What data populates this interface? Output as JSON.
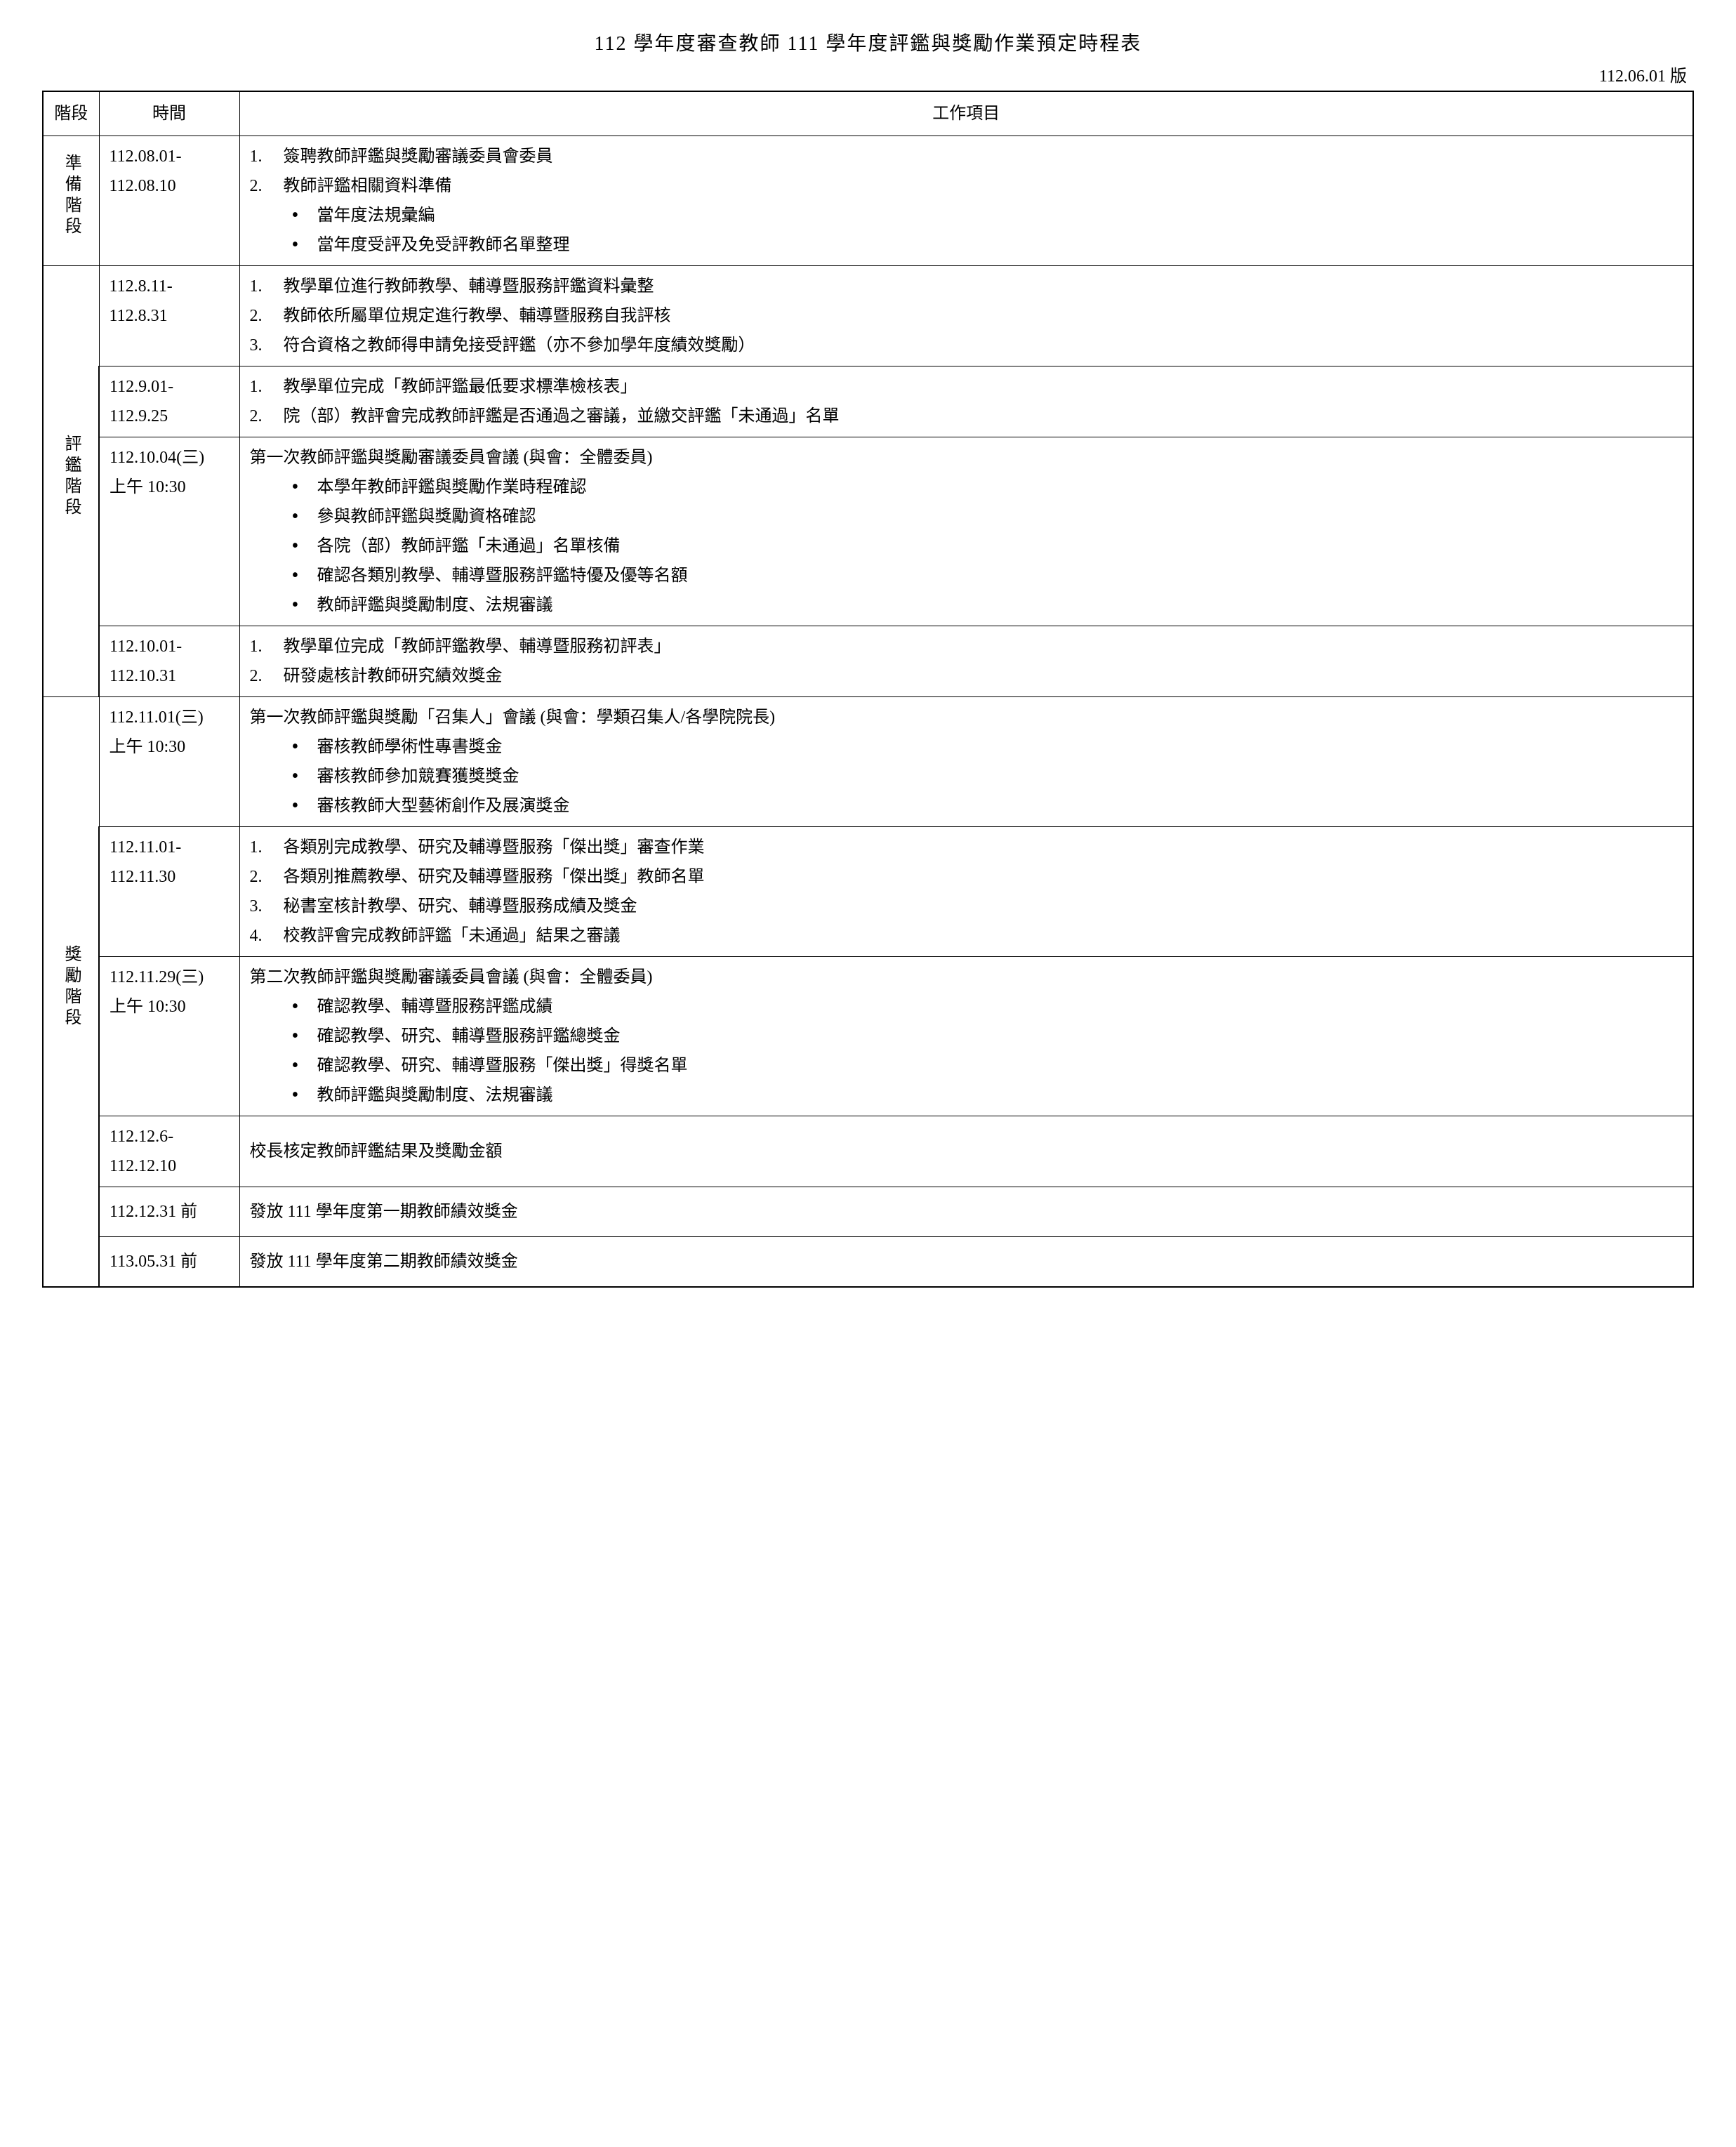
{
  "title": "112 學年度審查教師 111 學年度評鑑與獎勵作業預定時程表",
  "version": "112.06.01 版",
  "headers": {
    "stage": "階段",
    "time": "時間",
    "tasks": "工作項目"
  },
  "stages": {
    "prep": "準備階段",
    "eval": "評鑑階段",
    "reward": "獎勵階段"
  },
  "rows": {
    "r1": {
      "time1": "112.08.01-",
      "time2": "112.08.10",
      "li1": "簽聘教師評鑑與獎勵審議委員會委員",
      "li2": "教師評鑑相關資料準備",
      "sub1": "當年度法規彙編",
      "sub2": "當年度受評及免受評教師名單整理"
    },
    "r2": {
      "time1": "112.8.11-",
      "time2": "112.8.31",
      "li1": "教學單位進行教師教學、輔導暨服務評鑑資料彙整",
      "li2": "教師依所屬單位規定進行教學、輔導暨服務自我評核",
      "li3": "符合資格之教師得申請免接受評鑑（亦不參加學年度績效獎勵）"
    },
    "r3": {
      "time1": "112.9.01-",
      "time2": "112.9.25",
      "li1": "教學單位完成「教師評鑑最低要求標準檢核表」",
      "li2": "院（部）教評會完成教師評鑑是否通過之審議，並繳交評鑑「未通過」名單"
    },
    "r4": {
      "time1": "112.10.04(三)",
      "time2": "上午 10:30",
      "intro": "第一次教師評鑑與獎勵審議委員會議 (與會：全體委員)",
      "sub1": "本學年教師評鑑與獎勵作業時程確認",
      "sub2": "參與教師評鑑與獎勵資格確認",
      "sub3": "各院（部）教師評鑑「未通過」名單核備",
      "sub4": "確認各類別教學、輔導暨服務評鑑特優及優等名額",
      "sub5": "教師評鑑與獎勵制度、法規審議"
    },
    "r5": {
      "time1": "112.10.01-",
      "time2": "112.10.31",
      "li1": "教學單位完成「教師評鑑教學、輔導暨服務初評表」",
      "li2": "研發處核計教師研究績效獎金"
    },
    "r6": {
      "time1": "112.11.01(三)",
      "time2": "上午 10:30",
      "intro": "第一次教師評鑑與獎勵「召集人」會議 (與會：學類召集人/各學院院長)",
      "sub1": "審核教師學術性專書獎金",
      "sub2": "審核教師參加競賽獲獎獎金",
      "sub3": "審核教師大型藝術創作及展演獎金"
    },
    "r7": {
      "time1": "112.11.01-",
      "time2": "112.11.30",
      "li1": "各類別完成教學、研究及輔導暨服務「傑出獎」審查作業",
      "li2": "各類別推薦教學、研究及輔導暨服務「傑出獎」教師名單",
      "li3": "秘書室核計教學、研究、輔導暨服務成績及獎金",
      "li4": "校教評會完成教師評鑑「未通過」結果之審議"
    },
    "r8": {
      "time1": "112.11.29(三)",
      "time2": "上午 10:30",
      "intro": "第二次教師評鑑與獎勵審議委員會議 (與會：全體委員)",
      "sub1": "確認教學、輔導暨服務評鑑成績",
      "sub2": "確認教學、研究、輔導暨服務評鑑總獎金",
      "sub3": "確認教學、研究、輔導暨服務「傑出獎」得獎名單",
      "sub4": "教師評鑑與獎勵制度、法規審議"
    },
    "r9": {
      "time1": "112.12.6-",
      "time2": "112.12.10",
      "text": "校長核定教師評鑑結果及獎勵金額"
    },
    "r10": {
      "time": "112.12.31 前",
      "text": "發放 111 學年度第一期教師績效獎金"
    },
    "r11": {
      "time": "113.05.31 前",
      "text": "發放 111 學年度第二期教師績效獎金"
    }
  },
  "nums": {
    "n1": "1.",
    "n2": "2.",
    "n3": "3.",
    "n4": "4."
  }
}
